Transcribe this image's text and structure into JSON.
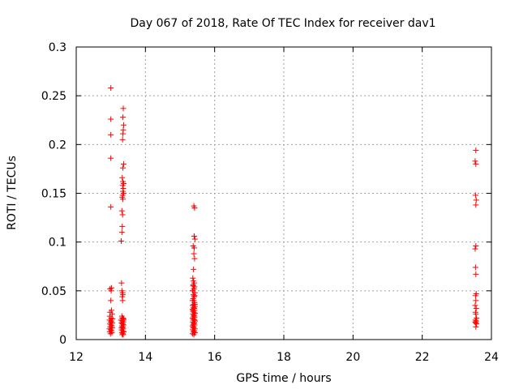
{
  "chart_data": {
    "type": "scatter",
    "title": "Day 067 of 2018, Rate Of TEC Index for receiver dav1",
    "xlabel": "GPS time / hours",
    "ylabel": "ROTI / TECUs",
    "xlim": [
      12,
      24
    ],
    "ylim": [
      0,
      0.3
    ],
    "x_ticks": [
      12,
      14,
      16,
      18,
      20,
      22,
      24
    ],
    "x_tick_labels": [
      "12",
      "14",
      "16",
      "18",
      "20",
      "22",
      "24"
    ],
    "y_ticks": [
      0,
      0.05,
      0.1,
      0.15,
      0.2,
      0.25,
      0.3
    ],
    "y_tick_labels": [
      "0",
      "0.05",
      "0.1",
      "0.15",
      "0.2",
      "0.25",
      "0.3"
    ],
    "grid": true,
    "marker": "+",
    "marker_color": "#ff0000",
    "series": [
      {
        "x": [
          13.0,
          13.0,
          13.0,
          13.0,
          13.0,
          13.0,
          13.0,
          13.0,
          13.0,
          13.0,
          13.0,
          13.0,
          13.0,
          13.0,
          13.0,
          13.0,
          13.0,
          13.0,
          13.0,
          13.0,
          13.0,
          13.0,
          13.0,
          13.0,
          13.0,
          13.0,
          13.0,
          13.0,
          13.0,
          13.0,
          13.3,
          13.3,
          13.3,
          13.3,
          13.3,
          13.3,
          13.3,
          13.3,
          13.3,
          13.3,
          13.3,
          13.3,
          13.3,
          13.3,
          13.3,
          13.3,
          13.3,
          13.3,
          13.3,
          13.3,
          13.3,
          13.3,
          13.3,
          13.3,
          13.3,
          13.3,
          13.3,
          13.3,
          13.3,
          13.3,
          13.3,
          13.3,
          13.3,
          13.3,
          13.3,
          13.3,
          13.3,
          13.3,
          13.3,
          13.3,
          13.3,
          13.3,
          13.3,
          13.3,
          13.3,
          13.3,
          13.3,
          13.3,
          13.3,
          13.3,
          13.3,
          13.3,
          13.3,
          13.3,
          15.3,
          15.3,
          15.3,
          15.3,
          15.3,
          15.3,
          15.3,
          15.3,
          15.3,
          15.3,
          15.3,
          15.3,
          15.3,
          15.3,
          15.3,
          15.3,
          15.3,
          15.3,
          15.3,
          15.3,
          15.3,
          15.3,
          15.3,
          15.3,
          15.3,
          15.3,
          15.3,
          15.3,
          15.3,
          15.3,
          15.3,
          15.3,
          15.3,
          15.3,
          15.3,
          15.3,
          15.3,
          15.3,
          15.3,
          15.3,
          15.3,
          15.3,
          15.3,
          15.3,
          15.3,
          15.3,
          15.3,
          15.3,
          15.3,
          15.3,
          15.3,
          15.3,
          15.3,
          15.3,
          15.3,
          15.3,
          15.3,
          15.3,
          15.3,
          15.3,
          15.3,
          15.3,
          15.3,
          15.3,
          15.3,
          15.3,
          23.5,
          23.5,
          23.5,
          23.5,
          23.5,
          23.5,
          23.5,
          23.5,
          23.5,
          23.5,
          23.5,
          23.5,
          23.5,
          23.5,
          23.5,
          23.5,
          23.5,
          23.5,
          23.5,
          23.5,
          23.5,
          23.5,
          23.5,
          23.5
        ],
        "y": [
          0.258,
          0.226,
          0.21,
          0.186,
          0.136,
          0.053,
          0.052,
          0.05,
          0.04,
          0.03,
          0.028,
          0.026,
          0.024,
          0.022,
          0.021,
          0.02,
          0.019,
          0.018,
          0.017,
          0.016,
          0.015,
          0.014,
          0.013,
          0.012,
          0.011,
          0.01,
          0.009,
          0.008,
          0.007,
          0.006,
          0.237,
          0.228,
          0.22,
          0.215,
          0.211,
          0.205,
          0.18,
          0.176,
          0.166,
          0.162,
          0.16,
          0.158,
          0.155,
          0.152,
          0.15,
          0.148,
          0.146,
          0.144,
          0.132,
          0.128,
          0.116,
          0.11,
          0.101,
          0.058,
          0.05,
          0.048,
          0.046,
          0.044,
          0.04,
          0.024,
          0.022,
          0.021,
          0.02,
          0.019,
          0.018,
          0.017,
          0.016,
          0.015,
          0.014,
          0.013,
          0.012,
          0.011,
          0.01,
          0.009,
          0.008,
          0.007,
          0.006,
          0.005,
          0.005,
          0.008,
          0.012,
          0.016,
          0.02,
          0.022,
          0.137,
          0.135,
          0.106,
          0.103,
          0.096,
          0.088,
          0.083,
          0.072,
          0.063,
          0.058,
          0.056,
          0.054,
          0.052,
          0.05,
          0.048,
          0.046,
          0.044,
          0.042,
          0.04,
          0.038,
          0.036,
          0.035,
          0.034,
          0.033,
          0.032,
          0.031,
          0.03,
          0.029,
          0.028,
          0.027,
          0.026,
          0.025,
          0.024,
          0.023,
          0.022,
          0.021,
          0.02,
          0.019,
          0.018,
          0.017,
          0.016,
          0.015,
          0.014,
          0.013,
          0.012,
          0.011,
          0.01,
          0.009,
          0.008,
          0.007,
          0.006,
          0.005,
          0.055,
          0.045,
          0.035,
          0.025,
          0.015,
          0.007,
          0.05,
          0.04,
          0.03,
          0.02,
          0.01,
          0.094,
          0.06,
          0.036,
          0.194,
          0.183,
          0.18,
          0.148,
          0.143,
          0.138,
          0.096,
          0.093,
          0.074,
          0.067,
          0.047,
          0.045,
          0.04,
          0.035,
          0.032,
          0.028,
          0.026,
          0.022,
          0.02,
          0.019,
          0.018,
          0.017,
          0.016,
          0.013
        ],
        "jitter": [
          0,
          0,
          0,
          0,
          0,
          0.02,
          -0.02,
          0.01,
          0,
          0.02,
          -0.02,
          0.04,
          -0.03,
          0.01,
          0.05,
          -0.04,
          0.02,
          -0.01,
          0.04,
          -0.03,
          0.01,
          0.03,
          -0.02,
          0.04,
          -0.04,
          0,
          0.02,
          -0.03,
          0.03,
          -0.01,
          0.06,
          0.05,
          0.07,
          0.06,
          0.05,
          0.04,
          0.07,
          0.05,
          0.03,
          0.05,
          0.07,
          0.04,
          0.06,
          0.05,
          0.07,
          0.04,
          0.03,
          0.05,
          0.02,
          0.04,
          0.03,
          0.02,
          0,
          0.01,
          0.02,
          0.04,
          0.05,
          0.03,
          0.04,
          0.02,
          0.05,
          0.07,
          -0.01,
          0.03,
          0.06,
          0.01,
          0.04,
          0.07,
          0.02,
          0.05,
          0.03,
          0.06,
          0.01,
          0.04,
          0.07,
          0.02,
          0.05,
          0.03,
          0.06,
          0.07,
          0.01,
          0.04,
          0.06,
          0.03,
          0.1,
          0.12,
          0.11,
          0.13,
          0.08,
          0.1,
          0.12,
          0.09,
          0.07,
          0.11,
          0.08,
          0.12,
          0.1,
          0.07,
          0.13,
          0.09,
          0.11,
          0.08,
          0.06,
          0.12,
          0.1,
          0.07,
          0.13,
          0.09,
          0.11,
          0.06,
          0.12,
          0.08,
          0.1,
          0.13,
          0.07,
          0.11,
          0.09,
          0.12,
          0.06,
          0.1,
          0.08,
          0.13,
          0.07,
          0.11,
          0.09,
          0.12,
          0.06,
          0.1,
          0.08,
          0.13,
          0.07,
          0.11,
          0.09,
          0.12,
          0.06,
          0.1,
          0.08,
          0.12,
          0.07,
          0.11,
          0.09,
          0.13,
          0.06,
          0.1,
          0.08,
          0.12,
          0.07,
          0.11,
          0.09,
          0.13,
          0.05,
          0.03,
          0.05,
          0.04,
          0.06,
          0.05,
          0.05,
          0.03,
          0.04,
          0.05,
          0.06,
          0.04,
          0.05,
          0.03,
          0.06,
          0.04,
          0.05,
          0.07,
          0.04,
          0.06,
          0.03,
          0.05,
          0.07,
          0.05
        ]
      }
    ]
  }
}
